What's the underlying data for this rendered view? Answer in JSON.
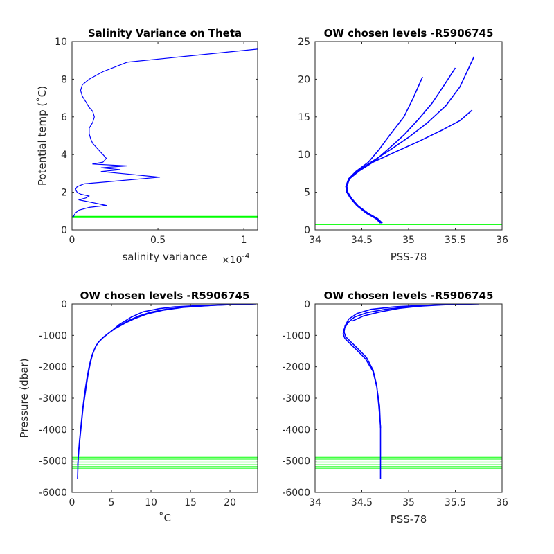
{
  "chart_data": [
    {
      "id": "p1",
      "type": "line",
      "title": "Salinity Variance on Theta",
      "xlabel": "salinity variance",
      "xexponent": "×10",
      "xexponent_power": "-4",
      "ylabel": "Potential temp (˚C)",
      "xlim": [
        0,
        1.08
      ],
      "ylim": [
        0,
        10
      ],
      "xticks": [
        0,
        0.5,
        1
      ],
      "xticklabels": [
        "0",
        "0.5",
        "1"
      ],
      "yticks": [
        0,
        2,
        4,
        6,
        8,
        10
      ],
      "yticklabels": [
        "0",
        "2",
        "4",
        "6",
        "8",
        "10"
      ],
      "series": [
        {
          "color": "#0000ff",
          "x": [
            1.08,
            0.32,
            0.18,
            0.1,
            0.06,
            0.05,
            0.06,
            0.08,
            0.1,
            0.12,
            0.13,
            0.12,
            0.1,
            0.1,
            0.11,
            0.12,
            0.14,
            0.16,
            0.18,
            0.2,
            0.18,
            0.12,
            0.32,
            0.17,
            0.28,
            0.17,
            0.51,
            0.2,
            0.07,
            0.03,
            0.02,
            0.03,
            0.05,
            0.1,
            0.08,
            0.04,
            0.2,
            0.1,
            0.04,
            0.02,
            0.01,
            0.01
          ],
          "y": [
            9.6,
            8.9,
            8.4,
            8.0,
            7.7,
            7.4,
            7.1,
            6.8,
            6.5,
            6.3,
            6.0,
            5.7,
            5.4,
            5.1,
            4.8,
            4.6,
            4.4,
            4.2,
            4.0,
            3.8,
            3.6,
            3.5,
            3.4,
            3.3,
            3.2,
            3.1,
            2.8,
            2.55,
            2.45,
            2.3,
            2.15,
            2.0,
            1.9,
            1.8,
            1.7,
            1.6,
            1.3,
            1.2,
            1.05,
            0.9,
            0.75,
            0.68
          ]
        }
      ],
      "hlines": {
        "color": "#00ff00",
        "y": [
          0.66,
          0.68,
          0.7,
          0.72
        ]
      }
    },
    {
      "id": "p2",
      "type": "line",
      "title": "OW chosen levels -R5906745",
      "xlabel": "PSS-78",
      "ylabel": "",
      "xlim": [
        34,
        36
      ],
      "ylim": [
        0,
        25
      ],
      "xticks": [
        34,
        34.5,
        35,
        35.5,
        36
      ],
      "xticklabels": [
        "34",
        "34.5",
        "35",
        "35.5",
        "36"
      ],
      "yticks": [
        0,
        5,
        10,
        15,
        20,
        25
      ],
      "yticklabels": [
        "0",
        "5",
        "10",
        "15",
        "20",
        "25"
      ],
      "series": [
        {
          "color": "#0000ff",
          "x": [
            34.7,
            34.65,
            34.55,
            34.45,
            34.38,
            34.34,
            34.33,
            34.36,
            34.45,
            34.6,
            34.8,
            35.0,
            35.2,
            35.4,
            35.55,
            35.7
          ],
          "y": [
            0.9,
            1.5,
            2.2,
            3.2,
            4.2,
            5.0,
            5.8,
            6.8,
            7.8,
            9.0,
            10.6,
            12.3,
            14.2,
            16.5,
            19.0,
            23.0
          ]
        },
        {
          "color": "#0000ff",
          "x": [
            34.72,
            34.67,
            34.57,
            34.46,
            34.39,
            34.35,
            34.34,
            34.37,
            34.47,
            34.62,
            34.78,
            34.95,
            35.1,
            35.25,
            35.38,
            35.5
          ],
          "y": [
            0.9,
            1.5,
            2.2,
            3.2,
            4.2,
            5.0,
            5.8,
            6.8,
            7.8,
            9.0,
            10.7,
            12.6,
            14.6,
            16.8,
            19.2,
            21.5
          ]
        },
        {
          "color": "#0000ff",
          "x": [
            34.7,
            34.66,
            34.56,
            34.45,
            34.38,
            34.34,
            34.33,
            34.36,
            34.44,
            34.57,
            34.68,
            34.8,
            34.95,
            35.05,
            35.15
          ],
          "y": [
            0.9,
            1.5,
            2.2,
            3.2,
            4.2,
            5.0,
            5.8,
            6.8,
            7.8,
            9.0,
            10.6,
            12.6,
            15.0,
            17.5,
            20.3
          ]
        },
        {
          "color": "#0000ff",
          "x": [
            34.71,
            34.66,
            34.56,
            34.45,
            34.38,
            34.34,
            34.33,
            34.37,
            34.46,
            34.62,
            34.85,
            35.1,
            35.35,
            35.55,
            35.68
          ],
          "y": [
            0.9,
            1.5,
            2.2,
            3.2,
            4.2,
            5.0,
            5.8,
            6.8,
            7.8,
            9.0,
            10.3,
            11.7,
            13.2,
            14.5,
            15.9
          ]
        }
      ],
      "hlines": {
        "color": "#00ff00",
        "y": [
          0.7
        ]
      }
    },
    {
      "id": "p3",
      "type": "line",
      "title": "OW chosen levels -R5906745",
      "xlabel": "˚C",
      "ylabel": "Pressure (dbar)",
      "xlim": [
        0,
        23.5
      ],
      "ylim": [
        -6000,
        0
      ],
      "xticks": [
        0,
        5,
        10,
        15,
        20
      ],
      "xticklabels": [
        "0",
        "5",
        "10",
        "15",
        "20"
      ],
      "yticks": [
        -6000,
        -5000,
        -4000,
        -3000,
        -2000,
        -1000,
        0
      ],
      "yticklabels": [
        "-6000",
        "-5000",
        "-4000",
        "-3000",
        "-2000",
        "-1000",
        "0"
      ],
      "series": [
        {
          "color": "#0000ff",
          "x": [
            23.3,
            20,
            16,
            13,
            11,
            9,
            7.5,
            6,
            5,
            4,
            3.4,
            3.0,
            2.6,
            2.3,
            2.0,
            1.7,
            1.4,
            1.2,
            1.0,
            0.85,
            0.75,
            0.7
          ],
          "y": [
            0,
            -20,
            -50,
            -90,
            -150,
            -250,
            -420,
            -650,
            -860,
            -1050,
            -1200,
            -1350,
            -1600,
            -1900,
            -2300,
            -2800,
            -3300,
            -3800,
            -4300,
            -4700,
            -5100,
            -5580
          ]
        },
        {
          "color": "#0000ff",
          "x": [
            23.0,
            19,
            15,
            12,
            10,
            8.5,
            7.2,
            5.8,
            4.8,
            3.9,
            3.3,
            2.9,
            2.5,
            2.2,
            1.9,
            1.6,
            1.35,
            1.15,
            0.95,
            0.82,
            0.72
          ],
          "y": [
            0,
            -30,
            -80,
            -160,
            -260,
            -380,
            -520,
            -720,
            -900,
            -1080,
            -1230,
            -1400,
            -1650,
            -1950,
            -2350,
            -2850,
            -3350,
            -3850,
            -4350,
            -4750,
            -5150
          ]
        },
        {
          "color": "#0000ff",
          "x": [
            22.5,
            18,
            14,
            11.5,
            9.5,
            8,
            6.8,
            5.5
          ],
          "y": [
            0,
            -40,
            -110,
            -200,
            -320,
            -460,
            -600,
            -780
          ]
        }
      ],
      "hlines": {
        "color": "#00ff00",
        "y": [
          -4620,
          -4880,
          -4940,
          -5000,
          -5060,
          -5120,
          -5180,
          -5230
        ]
      }
    },
    {
      "id": "p4",
      "type": "line",
      "title": "OW chosen levels -R5906745",
      "xlabel": "PSS-78",
      "ylabel": "",
      "xlim": [
        34,
        36
      ],
      "ylim": [
        -6000,
        0
      ],
      "xticks": [
        34,
        34.5,
        35,
        35.5,
        36
      ],
      "xticklabels": [
        "34",
        "34.5",
        "35",
        "35.5",
        "36"
      ],
      "yticks": [
        -6000,
        -5000,
        -4000,
        -3000,
        -2000,
        -1000,
        0
      ],
      "yticklabels": [
        "-6000",
        "-5000",
        "-4000",
        "-3000",
        "-2000",
        "-1000",
        "0"
      ],
      "series": [
        {
          "color": "#0000ff",
          "x": [
            35.75,
            35.4,
            35.1,
            34.85,
            34.6,
            34.45,
            34.36,
            34.32,
            34.31,
            34.33,
            34.38,
            34.45,
            34.55,
            34.62,
            34.66,
            34.68,
            34.7,
            34.7,
            34.7
          ],
          "y": [
            0,
            -20,
            -50,
            -90,
            -170,
            -300,
            -480,
            -700,
            -900,
            -1050,
            -1200,
            -1400,
            -1700,
            -2100,
            -2600,
            -3200,
            -3900,
            -4600,
            -5580
          ]
        },
        {
          "color": "#0000ff",
          "x": [
            35.6,
            35.3,
            35.0,
            34.75,
            34.55,
            34.42,
            34.35,
            34.31,
            34.3,
            34.32,
            34.37,
            34.44,
            34.54,
            34.62,
            34.66,
            34.69,
            34.7
          ],
          "y": [
            0,
            -40,
            -90,
            -170,
            -280,
            -420,
            -600,
            -800,
            -950,
            -1100,
            -1250,
            -1450,
            -1750,
            -2150,
            -2650,
            -3250,
            -3950
          ]
        },
        {
          "color": "#0000ff",
          "x": [
            35.45,
            35.15,
            34.9,
            34.7,
            34.52,
            34.4
          ],
          "y": [
            0,
            -60,
            -140,
            -250,
            -380,
            -540
          ]
        }
      ],
      "hlines": {
        "color": "#00ff00",
        "y": [
          -4620,
          -4880,
          -4940,
          -5000,
          -5060,
          -5120,
          -5180,
          -5230
        ]
      }
    }
  ]
}
